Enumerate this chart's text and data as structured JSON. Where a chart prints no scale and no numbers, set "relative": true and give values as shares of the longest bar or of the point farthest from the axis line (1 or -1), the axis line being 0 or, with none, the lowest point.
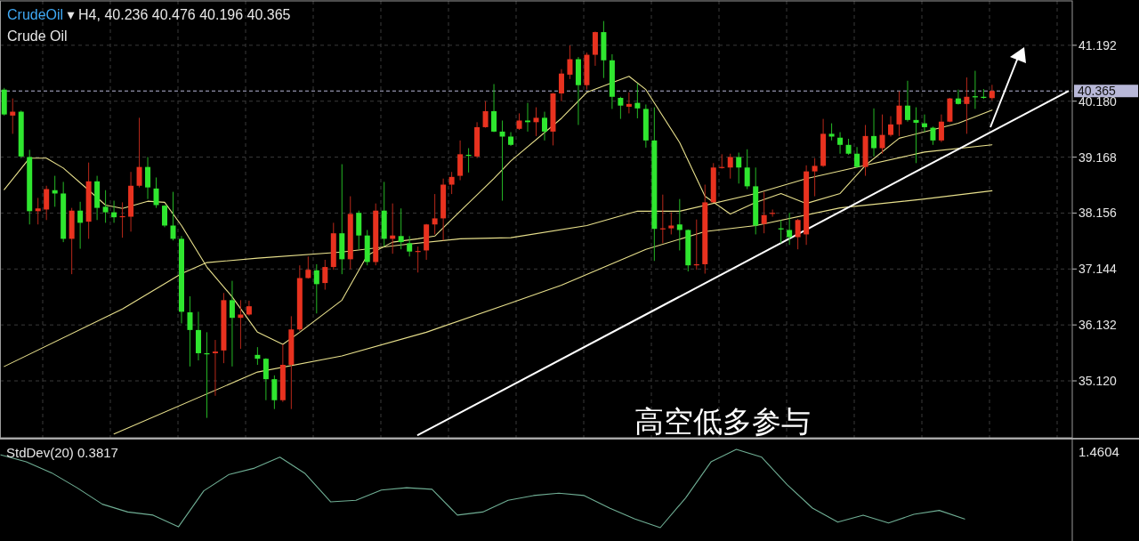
{
  "chart_data": [
    {
      "type": "candlestick",
      "title": "CrudeOil ▾ H4, 40.236 40.476 40.196 40.365",
      "subtitle": "Crude Oil",
      "categories": [
        null,
        null,
        null,
        null,
        null,
        null,
        null,
        null,
        null,
        null,
        null,
        null,
        null,
        null,
        null,
        null,
        null,
        null,
        null,
        null,
        null,
        null,
        null,
        null,
        null,
        null,
        null,
        null,
        null,
        null,
        null,
        null,
        null,
        null,
        null,
        null,
        null,
        null,
        null,
        null,
        null,
        null,
        null,
        null,
        null,
        null,
        null,
        null,
        null,
        null,
        null,
        null,
        null,
        null,
        null,
        null,
        null,
        null,
        null,
        null,
        null,
        null,
        null,
        null,
        null,
        null,
        null,
        null,
        null,
        null,
        null,
        null,
        null,
        null,
        null,
        null,
        null,
        null,
        null,
        null,
        null,
        null,
        null,
        null,
        null,
        null,
        null,
        null,
        null,
        null,
        null,
        null,
        null,
        null,
        null,
        null,
        null,
        null,
        null,
        null,
        null,
        null,
        null,
        null,
        null,
        null,
        null,
        null,
        null,
        null,
        null,
        null,
        null,
        null,
        null,
        null,
        null,
        null,
        null,
        null,
        null,
        null,
        null,
        null,
        null,
        null,
        null
      ],
      "ohlc": [
        [
          40.39,
          40.42,
          39.92,
          39.94
        ],
        [
          39.92,
          40.23,
          39.59,
          39.99
        ],
        [
          39.99,
          40.01,
          39.15,
          39.18
        ],
        [
          39.17,
          39.3,
          37.95,
          38.19
        ],
        [
          38.19,
          38.43,
          37.95,
          38.24
        ],
        [
          38.22,
          38.65,
          38.03,
          38.59
        ],
        [
          38.57,
          38.83,
          38.27,
          38.51
        ],
        [
          38.51,
          38.72,
          37.63,
          37.69
        ],
        [
          37.69,
          38.25,
          37.05,
          38.2
        ],
        [
          38.2,
          38.36,
          37.51,
          37.98
        ],
        [
          38.0,
          39.07,
          37.69,
          38.73
        ],
        [
          38.73,
          38.83,
          38.03,
          38.25
        ],
        [
          38.27,
          38.57,
          37.98,
          38.17
        ],
        [
          38.17,
          38.38,
          37.98,
          38.08
        ],
        [
          38.09,
          38.35,
          37.71,
          38.1
        ],
        [
          38.09,
          38.9,
          37.82,
          38.65
        ],
        [
          38.65,
          39.88,
          38.62,
          38.99
        ],
        [
          38.99,
          39.17,
          38.41,
          38.62
        ],
        [
          38.6,
          38.8,
          38.25,
          38.3
        ],
        [
          38.29,
          38.3,
          37.9,
          37.93
        ],
        [
          37.93,
          38.54,
          37.66,
          37.69
        ],
        [
          37.69,
          37.74,
          36.16,
          36.37
        ],
        [
          36.36,
          36.65,
          35.38,
          36.04
        ],
        [
          36.04,
          36.37,
          35.49,
          35.62
        ],
        [
          35.62,
          36.0,
          34.45,
          35.6
        ],
        [
          35.62,
          35.86,
          34.85,
          35.65
        ],
        [
          35.67,
          36.71,
          35.44,
          36.58
        ],
        [
          36.58,
          36.93,
          35.38,
          36.26
        ],
        [
          36.26,
          36.58,
          35.7,
          36.32
        ],
        [
          36.32,
          36.57,
          36.3,
          36.47
        ],
        [
          35.59,
          35.73,
          35.41,
          35.52
        ],
        [
          35.52,
          35.53,
          34.77,
          35.15
        ],
        [
          35.15,
          35.22,
          34.61,
          34.77
        ],
        [
          34.77,
          35.78,
          34.74,
          35.41
        ],
        [
          35.41,
          36.29,
          34.61,
          36.05
        ],
        [
          36.05,
          37.21,
          36.02,
          36.98
        ],
        [
          36.98,
          37.37,
          36.97,
          37.13
        ],
        [
          37.12,
          37.23,
          36.34,
          36.87
        ],
        [
          36.89,
          37.31,
          36.77,
          37.18
        ],
        [
          37.18,
          37.98,
          37.13,
          37.79
        ],
        [
          37.79,
          39.04,
          37.05,
          37.32
        ],
        [
          37.32,
          38.46,
          37.14,
          38.14
        ],
        [
          38.16,
          38.2,
          37.5,
          37.75
        ],
        [
          37.75,
          37.85,
          37.21,
          37.27
        ],
        [
          37.27,
          38.33,
          37.21,
          38.2
        ],
        [
          38.2,
          38.72,
          37.55,
          37.69
        ],
        [
          37.69,
          38.33,
          37.42,
          37.75
        ],
        [
          37.74,
          38.24,
          37.5,
          37.63
        ],
        [
          37.61,
          37.74,
          37.37,
          37.46
        ],
        [
          37.46,
          37.55,
          37.08,
          37.47
        ],
        [
          37.48,
          37.96,
          37.31,
          37.95
        ],
        [
          37.95,
          38.5,
          37.77,
          38.06
        ],
        [
          38.06,
          38.78,
          37.66,
          38.67
        ],
        [
          38.67,
          38.9,
          38.5,
          38.81
        ],
        [
          38.83,
          39.47,
          38.75,
          39.22
        ],
        [
          39.21,
          39.33,
          38.89,
          39.2
        ],
        [
          39.18,
          39.8,
          39.15,
          39.71
        ],
        [
          39.71,
          40.18,
          39.7,
          40.0
        ],
        [
          40.0,
          40.49,
          39.62,
          39.63
        ],
        [
          39.63,
          39.83,
          38.38,
          39.54
        ],
        [
          39.54,
          39.62,
          39.37,
          39.39
        ],
        [
          39.68,
          39.96,
          39.66,
          39.83
        ],
        [
          39.83,
          40.15,
          39.63,
          39.8
        ],
        [
          39.8,
          40.07,
          39.55,
          39.88
        ],
        [
          39.88,
          39.99,
          39.47,
          39.63
        ],
        [
          39.63,
          40.33,
          39.38,
          40.32
        ],
        [
          40.32,
          40.76,
          40.18,
          40.68
        ],
        [
          40.66,
          41.19,
          40.58,
          40.94
        ],
        [
          40.94,
          40.98,
          39.75,
          40.47
        ],
        [
          40.47,
          41.06,
          40.39,
          41.02
        ],
        [
          41.02,
          41.44,
          40.82,
          41.43
        ],
        [
          41.43,
          41.63,
          40.6,
          40.92
        ],
        [
          40.92,
          41.03,
          40.04,
          40.26
        ],
        [
          40.24,
          40.26,
          39.86,
          40.1
        ],
        [
          40.08,
          40.34,
          39.96,
          40.13
        ],
        [
          40.15,
          40.5,
          39.87,
          40.05
        ],
        [
          40.04,
          40.12,
          39.34,
          39.47
        ],
        [
          39.47,
          40.07,
          37.29,
          37.87
        ],
        [
          37.87,
          38.49,
          37.61,
          37.88
        ],
        [
          37.88,
          38.17,
          37.77,
          37.93
        ],
        [
          37.95,
          38.41,
          37.48,
          37.85
        ],
        [
          37.85,
          37.86,
          37.1,
          37.21
        ],
        [
          37.21,
          38.04,
          37.13,
          37.23
        ],
        [
          37.23,
          38.67,
          37.06,
          38.35
        ],
        [
          38.35,
          39.06,
          38.34,
          38.98
        ],
        [
          38.98,
          39.22,
          38.96,
          38.99
        ],
        [
          38.98,
          39.23,
          38.78,
          39.17
        ],
        [
          39.17,
          39.25,
          38.69,
          38.98
        ],
        [
          38.98,
          39.31,
          38.59,
          38.64
        ],
        [
          38.64,
          38.98,
          37.77,
          37.93
        ],
        [
          37.96,
          38.54,
          37.79,
          38.12
        ],
        [
          38.15,
          38.22,
          38.09,
          38.16
        ],
        [
          37.88,
          38.03,
          37.61,
          37.86
        ],
        [
          37.85,
          38.16,
          37.58,
          37.72
        ],
        [
          37.72,
          38.05,
          37.5,
          38.03
        ],
        [
          37.77,
          39.02,
          37.58,
          38.91
        ],
        [
          38.91,
          39.15,
          38.46,
          39.01
        ],
        [
          39.01,
          39.86,
          38.99,
          39.59
        ],
        [
          39.59,
          39.78,
          39.47,
          39.54
        ],
        [
          39.52,
          39.62,
          39.23,
          39.39
        ],
        [
          39.39,
          39.5,
          39.21,
          39.23
        ],
        [
          39.23,
          39.35,
          38.98,
          38.99
        ],
        [
          38.99,
          39.75,
          38.83,
          39.55
        ],
        [
          39.55,
          40.05,
          39.18,
          39.33
        ],
        [
          39.33,
          39.94,
          39.23,
          39.57
        ],
        [
          39.57,
          39.91,
          39.54,
          39.76
        ],
        [
          39.76,
          40.36,
          39.55,
          40.1
        ],
        [
          40.1,
          40.55,
          39.81,
          39.84
        ],
        [
          39.84,
          40.07,
          39.06,
          39.79
        ],
        [
          39.78,
          39.94,
          39.62,
          39.71
        ],
        [
          39.7,
          39.72,
          39.39,
          39.47
        ],
        [
          39.47,
          39.94,
          39.44,
          39.81
        ],
        [
          39.81,
          40.24,
          39.8,
          40.23
        ],
        [
          40.23,
          40.39,
          40.12,
          40.13
        ],
        [
          40.13,
          40.61,
          39.59,
          40.26
        ],
        [
          40.27,
          40.73,
          40.04,
          40.25
        ],
        [
          40.26,
          40.4,
          40.22,
          40.24
        ],
        [
          40.236,
          40.476,
          40.196,
          40.365
        ],
        null,
        null,
        null,
        null,
        null,
        null,
        null,
        null,
        null
      ],
      "series": [
        {
          "type": "line",
          "color": "#e8e08c",
          "values": [
            38.58,
            null,
            null,
            39.15,
            null,
            39.15,
            null,
            38.97,
            null,
            null,
            38.57,
            null,
            38.3,
            null,
            38.24,
            null,
            null,
            38.37,
            null,
            38.35,
            null,
            37.93,
            null,
            null,
            37.18,
            null,
            null,
            36.64,
            null,
            null,
            36.0,
            null,
            null,
            35.78,
            null,
            36.0,
            null,
            null,
            null,
            null,
            36.58,
            null,
            null,
            37.39,
            null,
            null,
            37.63,
            null,
            null,
            37.69,
            null,
            37.74,
            null,
            null,
            38.19,
            null,
            null,
            null,
            38.78,
            null,
            39.1,
            null,
            null,
            null,
            null,
            null,
            39.87,
            null,
            null,
            40.34,
            null,
            null,
            null,
            null,
            40.63,
            null,
            40.39,
            null,
            null,
            null,
            39.43,
            null,
            null,
            38.46,
            null,
            null,
            38.14,
            null,
            null,
            38.35,
            null,
            null,
            38.51,
            null,
            null,
            38.33,
            null,
            null,
            null,
            38.51,
            null,
            null,
            39.02,
            null,
            null,
            null,
            39.51,
            null,
            null,
            null,
            null,
            null,
            null,
            39.78,
            null,
            null,
            null,
            40.02,
            null,
            null,
            null,
            null,
            null,
            null,
            null,
            null,
            null
          ]
        },
        {
          "type": "line",
          "color": "#e8e08c",
          "values": [
            35.38,
            null,
            null,
            null,
            null,
            null,
            null,
            null,
            null,
            null,
            null,
            null,
            null,
            null,
            36.42,
            null,
            null,
            null,
            null,
            null,
            null,
            37.06,
            null,
            null,
            37.26,
            null,
            null,
            null,
            null,
            null,
            37.34,
            null,
            null,
            null,
            null,
            null,
            null,
            null,
            null,
            null,
            37.45,
            null,
            null,
            null,
            null,
            null,
            null,
            37.58,
            null,
            null,
            null,
            null,
            null,
            null,
            37.69,
            null,
            null,
            null,
            null,
            null,
            37.71,
            null,
            null,
            null,
            null,
            null,
            null,
            null,
            null,
            37.93,
            null,
            null,
            null,
            null,
            null,
            38.19,
            null,
            null,
            null,
            null,
            38.19,
            null,
            null,
            null,
            null,
            null,
            null,
            null,
            null,
            38.51,
            null,
            null,
            null,
            null,
            null,
            38.78,
            null,
            null,
            null,
            null,
            null,
            null,
            39.02,
            null,
            null,
            null,
            null,
            null,
            null,
            39.26,
            null,
            null,
            null,
            null,
            null,
            null,
            null,
            39.39,
            null,
            null,
            null,
            null,
            null,
            null,
            null,
            null,
            null
          ]
        },
        {
          "type": "line",
          "color": "#e8e08c",
          "values": [
            null,
            null,
            null,
            null,
            null,
            null,
            null,
            null,
            null,
            null,
            null,
            null,
            null,
            34.16,
            null,
            null,
            null,
            null,
            null,
            null,
            null,
            null,
            null,
            null,
            null,
            null,
            null,
            null,
            null,
            null,
            35.28,
            null,
            null,
            null,
            null,
            null,
            null,
            null,
            null,
            null,
            35.57,
            null,
            null,
            null,
            null,
            null,
            null,
            null,
            null,
            null,
            36.0,
            null,
            null,
            null,
            null,
            null,
            null,
            null,
            null,
            null,
            36.53,
            null,
            null,
            null,
            null,
            null,
            36.85,
            null,
            null,
            null,
            null,
            null,
            null,
            null,
            null,
            null,
            37.5,
            null,
            null,
            null,
            null,
            null,
            null,
            37.82,
            null,
            null,
            null,
            null,
            null,
            37.93,
            null,
            null,
            null,
            null,
            null,
            null,
            null,
            null,
            null,
            38.25,
            null,
            null,
            null,
            null,
            null,
            null,
            null,
            null,
            null,
            38.41,
            null,
            null,
            null,
            null,
            null,
            null,
            null,
            38.56,
            null,
            null,
            null,
            null,
            null,
            null,
            null,
            null,
            null
          ]
        },
        {
          "type": "line",
          "color": "#ffffff",
          "values": [
            null,
            null,
            null,
            null,
            null,
            null,
            null,
            null,
            null,
            null,
            null,
            null,
            null,
            null,
            null,
            null,
            null,
            null,
            null,
            null,
            null,
            null,
            null,
            null,
            null,
            null,
            null,
            null,
            null,
            null,
            null,
            null,
            null,
            null,
            null,
            null,
            null,
            null,
            null,
            null,
            null,
            null,
            null,
            null,
            null,
            null,
            null,
            null,
            null,
            34.14,
            null,
            null,
            null,
            null,
            null,
            null,
            null,
            null,
            null,
            null,
            null,
            null,
            null,
            null,
            null,
            null,
            null,
            null,
            null,
            null,
            null,
            null,
            null,
            null,
            null,
            null,
            null,
            null,
            null,
            null,
            null,
            null,
            null,
            null,
            null,
            null,
            null,
            null,
            null,
            null,
            null,
            null,
            null,
            null,
            null,
            null,
            null,
            null,
            null,
            null,
            null,
            null,
            null,
            null,
            null,
            null,
            null,
            null,
            null,
            null,
            null,
            null,
            null,
            null,
            null,
            null,
            null,
            null,
            null,
            null,
            null,
            null,
            null,
            null,
            null,
            null,
            40.36
          ]
        }
      ],
      "ylim": [
        34.09,
        41.995
      ],
      "yticks": [
        {
          "value": 35.12,
          "label": "35.120"
        },
        36.132,
        37.144,
        38.156,
        39.168,
        {
          "value": 40.18,
          "label": "40.180"
        },
        41.192
      ],
      "tick_labels": "y",
      "grid": true,
      "ref_lines": [
        {
          "axis": "y",
          "value": 40.365,
          "label": "40.365",
          "color": "#b8b8d8",
          "line_style": "dashed"
        }
      ],
      "annotations": [
        "高空低多参与"
      ]
    },
    {
      "type": "line",
      "relative": true,
      "title": "StdDev(20) 0.3817",
      "annotations": [
        "1.4604"
      ],
      "categories": [
        null,
        null,
        null,
        null,
        null,
        null,
        null,
        null,
        null,
        null,
        null,
        null,
        null,
        null,
        null,
        null,
        null,
        null,
        null,
        null,
        null,
        null,
        null,
        null,
        null,
        null,
        null,
        null,
        null,
        null,
        null,
        null,
        null,
        null,
        null,
        null,
        null,
        null,
        null,
        null
      ],
      "series": [
        {
          "color": "#6fae94",
          "values": [
            0.93,
            0.84,
            0.7,
            0.51,
            0.3,
            0.2,
            0.16,
            0.01,
            0.47,
            0.68,
            0.76,
            0.9,
            0.69,
            0.33,
            0.35,
            0.48,
            0.51,
            0.49,
            0.16,
            0.2,
            0.35,
            0.41,
            0.44,
            0.41,
            0.25,
            0.11,
            0,
            0.38,
            0.84,
            1.0,
            0.9,
            0.55,
            0.25,
            0.07,
            0.16,
            0.06,
            0.17,
            0.22,
            0.11,
            null
          ]
        }
      ]
    }
  ]
}
